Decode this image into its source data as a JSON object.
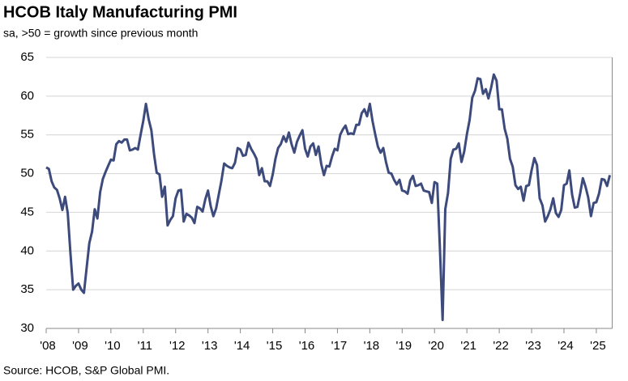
{
  "chart_data": {
    "type": "line",
    "title": "HCOB Italy Manufacturing PMI",
    "subtitle": "sa, >50 = growth since previous month",
    "source": "Source: HCOB, S&P Global PMI.",
    "categories": [
      "'08",
      null,
      null,
      null,
      null,
      null,
      null,
      null,
      null,
      null,
      null,
      null,
      "'09",
      null,
      null,
      null,
      null,
      null,
      null,
      null,
      null,
      null,
      null,
      null,
      "'10",
      null,
      null,
      null,
      null,
      null,
      null,
      null,
      null,
      null,
      null,
      null,
      "'11",
      null,
      null,
      null,
      null,
      null,
      null,
      null,
      null,
      null,
      null,
      null,
      "'12",
      null,
      null,
      null,
      null,
      null,
      null,
      null,
      null,
      null,
      null,
      null,
      "'13",
      null,
      null,
      null,
      null,
      null,
      null,
      null,
      null,
      null,
      null,
      null,
      "'14",
      null,
      null,
      null,
      null,
      null,
      null,
      null,
      null,
      null,
      null,
      null,
      "'15",
      null,
      null,
      null,
      null,
      null,
      null,
      null,
      null,
      null,
      null,
      null,
      "'16",
      null,
      null,
      null,
      null,
      null,
      null,
      null,
      null,
      null,
      null,
      null,
      "'17",
      null,
      null,
      null,
      null,
      null,
      null,
      null,
      null,
      null,
      null,
      null,
      "'18",
      null,
      null,
      null,
      null,
      null,
      null,
      null,
      null,
      null,
      null,
      null,
      "'19",
      null,
      null,
      null,
      null,
      null,
      null,
      null,
      null,
      null,
      null,
      null,
      "'20",
      null,
      null,
      null,
      null,
      null,
      null,
      null,
      null,
      null,
      null,
      null,
      "'21",
      null,
      null,
      null,
      null,
      null,
      null,
      null,
      null,
      null,
      null,
      null,
      "'22",
      null,
      null,
      null,
      null,
      null,
      null,
      null,
      null,
      null,
      null,
      null,
      "'23",
      null,
      null,
      null,
      null,
      null,
      null,
      null,
      null,
      null,
      null,
      null,
      "'24",
      null,
      null,
      null,
      null,
      null,
      null,
      null,
      null,
      null,
      null,
      null,
      "'25",
      null,
      null,
      null,
      null,
      null
    ],
    "series": [
      {
        "color": "#3d4a7c",
        "values": [
          50.8,
          50.6,
          49.0,
          48.2,
          47.9,
          46.8,
          45.3,
          47.0,
          44.9,
          39.6,
          35.0,
          35.5,
          35.8,
          35.0,
          34.6,
          37.8,
          41.0,
          42.5,
          45.4,
          44.2,
          47.6,
          49.3,
          50.2,
          51.0,
          51.8,
          51.7,
          53.8,
          54.2,
          54.0,
          54.4,
          54.4,
          53.0,
          53.1,
          53.3,
          53.1,
          55.0,
          56.8,
          59.0,
          57.0,
          55.6,
          52.5,
          50.1,
          49.9,
          47.0,
          48.3,
          43.3,
          44.0,
          44.5,
          46.8,
          47.8,
          47.9,
          43.8,
          44.8,
          44.6,
          44.3,
          43.6,
          45.7,
          45.5,
          45.1,
          46.7,
          47.8,
          45.8,
          44.5,
          45.5,
          47.3,
          49.1,
          51.3,
          51.0,
          50.8,
          50.7,
          51.4,
          53.3,
          53.1,
          52.3,
          52.4,
          54.0,
          53.2,
          52.6,
          51.9,
          49.8,
          50.7,
          49.0,
          49.0,
          48.4,
          49.9,
          51.9,
          53.3,
          53.8,
          54.8,
          54.1,
          55.3,
          53.8,
          52.7,
          54.1,
          54.9,
          55.6,
          53.2,
          52.2,
          53.5,
          53.9,
          52.4,
          53.5,
          51.2,
          49.8,
          51.0,
          50.9,
          52.2,
          53.2,
          53.0,
          55.0,
          55.7,
          56.2,
          55.1,
          55.2,
          55.1,
          56.3,
          56.3,
          57.8,
          58.3,
          57.4,
          59.0,
          56.8,
          55.1,
          53.5,
          52.7,
          53.3,
          51.5,
          50.1,
          50.0,
          49.2,
          48.6,
          49.2,
          47.8,
          47.7,
          47.4,
          49.1,
          49.7,
          48.4,
          48.5,
          48.7,
          47.8,
          47.7,
          47.6,
          46.2,
          48.9,
          48.7,
          40.3,
          31.1,
          45.4,
          47.5,
          51.9,
          53.1,
          53.2,
          53.9,
          51.5,
          52.8,
          55.1,
          56.9,
          59.8,
          60.7,
          62.3,
          62.2,
          60.3,
          60.9,
          59.7,
          61.1,
          62.8,
          62.0,
          58.3,
          58.3,
          55.8,
          54.5,
          51.9,
          50.9,
          48.5,
          48.0,
          48.3,
          46.5,
          48.4,
          48.5,
          50.4,
          52.0,
          51.1,
          46.8,
          45.9,
          43.8,
          44.5,
          45.4,
          46.8,
          44.9,
          44.4,
          45.3,
          48.5,
          48.7,
          50.4,
          47.3,
          45.6,
          45.7,
          47.4,
          49.4,
          48.3,
          46.9,
          44.5,
          46.2,
          46.3,
          47.4,
          49.3,
          49.2,
          48.4,
          49.8
        ]
      }
    ],
    "ylim": [
      30,
      65
    ],
    "yticks": [
      30,
      35,
      40,
      45,
      50,
      55,
      60,
      65
    ],
    "grid": true
  }
}
